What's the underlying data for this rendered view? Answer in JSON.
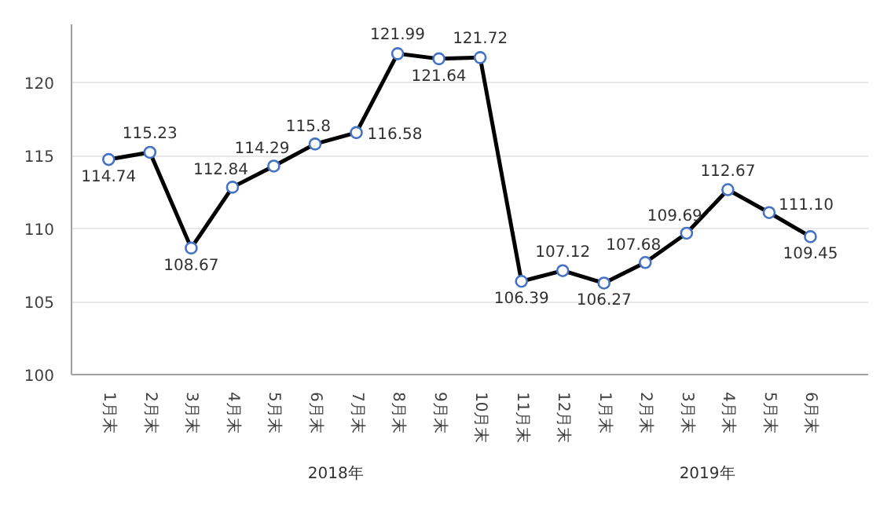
{
  "chart_data": {
    "type": "line",
    "categories": [
      "1月末",
      "2月末",
      "3月末",
      "4月末",
      "5月末",
      "6月末",
      "7月末",
      "8月末",
      "9月末",
      "10月末",
      "11月末",
      "12月末",
      "1月末",
      "2月末",
      "3月末",
      "4月末",
      "5月末",
      "6月末"
    ],
    "series": [
      {
        "color": "#000000",
        "values": [
          114.74,
          115.23,
          108.67,
          112.84,
          114.29,
          115.8,
          116.58,
          121.99,
          121.64,
          121.72,
          106.39,
          107.12,
          106.27,
          107.68,
          109.69,
          112.67,
          111.1,
          109.45
        ]
      }
    ],
    "value_labels": [
      "114.74",
      "115.23",
      "108.67",
      "112.84",
      "114.29",
      "115.8",
      "116.58",
      "121.99",
      "121.64",
      "121.72",
      "106.39",
      "107.12",
      "106.27",
      "107.68",
      "109.69",
      "112.67",
      "111.10",
      "109.45"
    ],
    "ylim": [
      100,
      124
    ],
    "yticks": [
      100,
      105,
      110,
      115,
      120
    ],
    "grid": "y",
    "marker": "circle",
    "line_style": "solid",
    "annotations": [
      "2018年",
      "2019年"
    ]
  }
}
